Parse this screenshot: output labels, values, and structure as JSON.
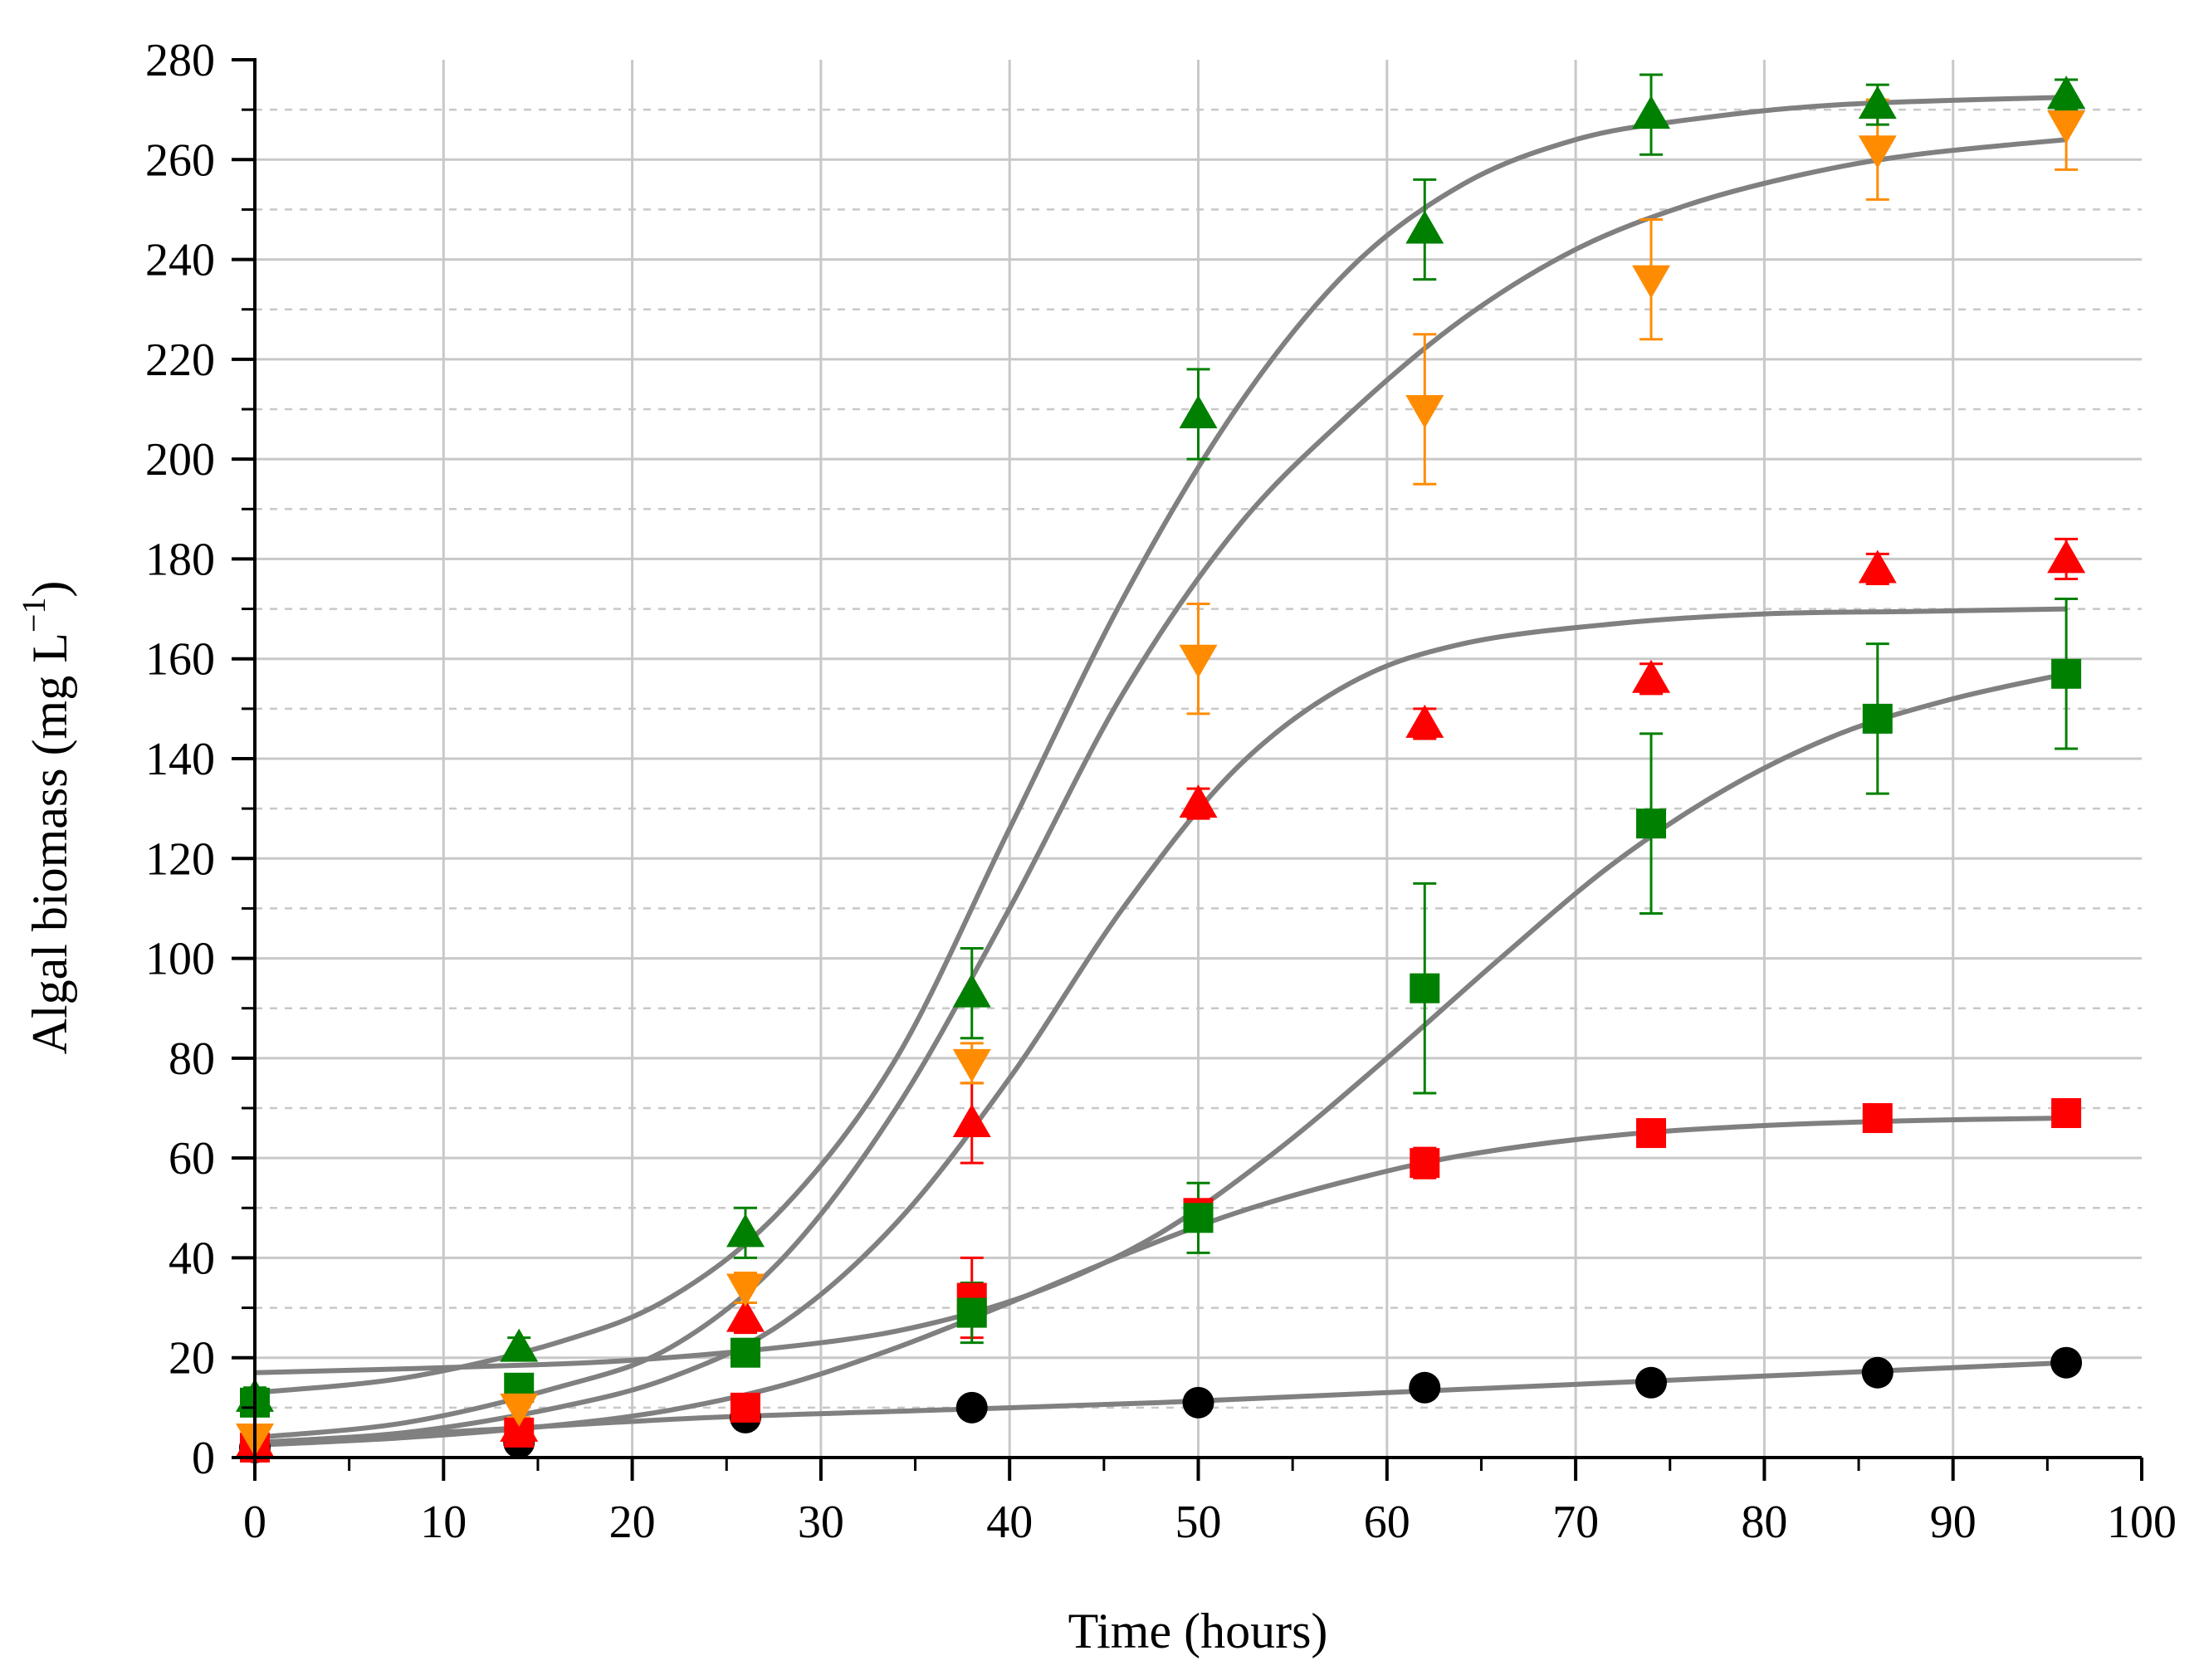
{
  "chart_data": {
    "type": "scatter",
    "title": "",
    "xlabel": "Time (hours)",
    "ylabel_main": "Algal biomass (mg L",
    "ylabel_sup": "−1",
    "ylabel_close": ")",
    "xlim": [
      0,
      100
    ],
    "ylim": [
      0,
      280
    ],
    "x_ticks": [
      0,
      10,
      20,
      30,
      40,
      50,
      60,
      70,
      80,
      90,
      100
    ],
    "x_tick_labels": [
      "0",
      "10",
      "20",
      "30",
      "40",
      "50",
      "60",
      "70",
      "80",
      "90",
      "100"
    ],
    "y_ticks": [
      0,
      20,
      40,
      60,
      80,
      100,
      120,
      140,
      160,
      180,
      200,
      220,
      240,
      260,
      280
    ],
    "y_tick_labels": [
      "0",
      "20",
      "40",
      "60",
      "80",
      "100",
      "120",
      "140",
      "160",
      "180",
      "200",
      "220",
      "240",
      "260",
      "280"
    ],
    "grid": true,
    "series": [
      {
        "name": "black-circle",
        "marker": "circle",
        "color": "#000000",
        "x": [
          0,
          14,
          26,
          38,
          50,
          62,
          74,
          86,
          96
        ],
        "y": [
          2,
          3,
          8,
          10,
          11,
          14,
          15,
          17,
          19
        ],
        "err": [
          1,
          1,
          1,
          1,
          1,
          1,
          1,
          1,
          1
        ],
        "fit_x": [
          0,
          12,
          24,
          36,
          48,
          60,
          72,
          84,
          96
        ],
        "fit_y": [
          3,
          5.5,
          8,
          9.5,
          11,
          13,
          15,
          17,
          19
        ]
      },
      {
        "name": "red-square",
        "marker": "square",
        "color": "#ff0000",
        "x": [
          0,
          14,
          26,
          38,
          50,
          62,
          74,
          86,
          96
        ],
        "y": [
          2,
          5,
          10,
          32,
          49,
          59,
          65,
          68,
          69
        ],
        "err": [
          1,
          1,
          1,
          8,
          2,
          3,
          1,
          1,
          1
        ],
        "fit_x": [
          0,
          8,
          16,
          22,
          28,
          34,
          40,
          46,
          52,
          58,
          64,
          72,
          80,
          88,
          96
        ],
        "fit_y": [
          2.5,
          4,
          6.5,
          9.5,
          14.5,
          22,
          31,
          40.5,
          49,
          55.5,
          60.5,
          64.5,
          66.5,
          67.5,
          68
        ]
      },
      {
        "name": "green-square",
        "marker": "square",
        "color": "#008000",
        "x": [
          0,
          14,
          26,
          38,
          50,
          62,
          74,
          86,
          96
        ],
        "y": [
          11,
          14,
          21,
          29,
          48,
          94,
          127,
          148,
          157
        ],
        "err": [
          1,
          1,
          2,
          6,
          7,
          21,
          18,
          15,
          15
        ],
        "fit_x": [
          0,
          10,
          20,
          30,
          36,
          42,
          48,
          54,
          60,
          66,
          72,
          78,
          84,
          90,
          96
        ],
        "fit_y": [
          17,
          18,
          19.5,
          23,
          27,
          34,
          45,
          61,
          80,
          100,
          119,
          134,
          145,
          152,
          157
        ]
      },
      {
        "name": "red-triangle",
        "marker": "triangle-up",
        "color": "#ff0000",
        "x": [
          0,
          14,
          26,
          38,
          50,
          62,
          74,
          86,
          96
        ],
        "y": [
          3,
          6,
          28,
          67,
          131,
          147,
          156,
          178,
          180
        ],
        "err": [
          1,
          1,
          3,
          8,
          3,
          3,
          3,
          3,
          4
        ],
        "fit_x": [
          0,
          8,
          16,
          22,
          28,
          34,
          40,
          46,
          52,
          58,
          64,
          72,
          80,
          88,
          96
        ],
        "fit_y": [
          3,
          5,
          10,
          16,
          27,
          47,
          76,
          110,
          138,
          155,
          163,
          167,
          169,
          169.5,
          170
        ]
      },
      {
        "name": "orange-triangle-down",
        "marker": "triangle-down",
        "color": "#ff8c00",
        "x": [
          0,
          14,
          26,
          38,
          50,
          62,
          74,
          86,
          96
        ],
        "y": [
          4,
          10,
          34,
          79,
          160,
          210,
          236,
          262,
          267
        ],
        "err": [
          1,
          2,
          3,
          4,
          11,
          15,
          12,
          10,
          9
        ],
        "fit_x": [
          0,
          8,
          16,
          22,
          28,
          34,
          40,
          46,
          52,
          58,
          64,
          70,
          76,
          82,
          88,
          96
        ],
        "fit_y": [
          4,
          7,
          14,
          22,
          40,
          70,
          110,
          153,
          186,
          209,
          228,
          242,
          251,
          257,
          261,
          264
        ]
      },
      {
        "name": "green-triangle",
        "marker": "triangle-up",
        "color": "#008000",
        "x": [
          0,
          14,
          26,
          38,
          50,
          62,
          74,
          86,
          96
        ],
        "y": [
          12,
          22,
          45,
          93,
          209,
          246,
          269,
          271,
          273
        ],
        "err": [
          2,
          2,
          5,
          9,
          9,
          10,
          8,
          4,
          3
        ],
        "fit_x": [
          0,
          8,
          16,
          22,
          28,
          34,
          40,
          46,
          52,
          58,
          64,
          70,
          76,
          84,
          96
        ],
        "fit_y": [
          13,
          16,
          23,
          32,
          50,
          80,
          126,
          172,
          210,
          238,
          255,
          264,
          268,
          271,
          272.5
        ]
      }
    ]
  }
}
